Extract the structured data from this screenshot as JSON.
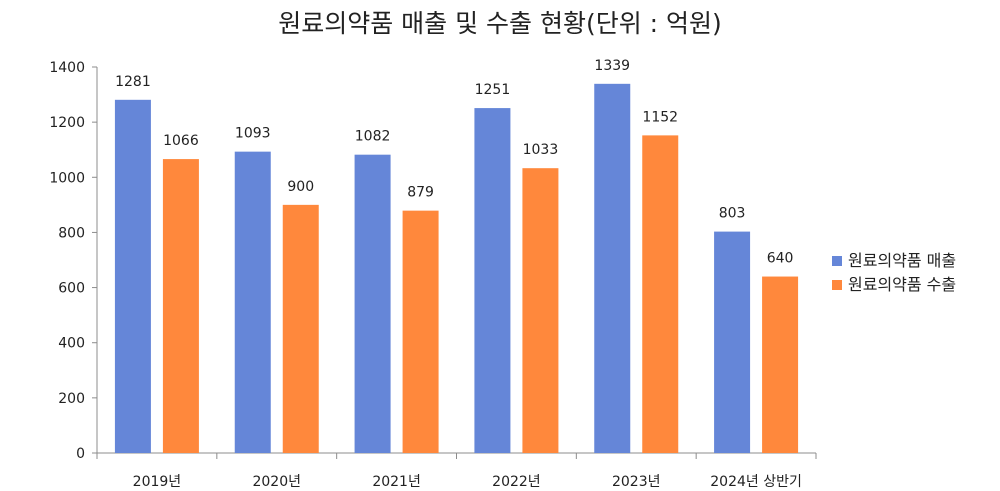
{
  "chart_data": {
    "type": "bar",
    "title": "원료의약품 매출 및 수출 현황(단위 : 억원)",
    "categories": [
      "2019년",
      "2020년",
      "2021년",
      "2022년",
      "2023년",
      "2024년 상반기"
    ],
    "series": [
      {
        "name": "원료의약품 매출",
        "values": [
          1281,
          1093,
          1082,
          1251,
          1339,
          803
        ],
        "color": "#6586D8"
      },
      {
        "name": "원료의약품 수출",
        "values": [
          1066,
          900,
          879,
          1033,
          1152,
          640
        ],
        "color": "#FF883C"
      }
    ],
    "ylim": [
      0,
      1400
    ],
    "yticks": [
      0,
      200,
      400,
      600,
      800,
      1000,
      1200,
      1400
    ],
    "grid": false,
    "legend": "right"
  }
}
